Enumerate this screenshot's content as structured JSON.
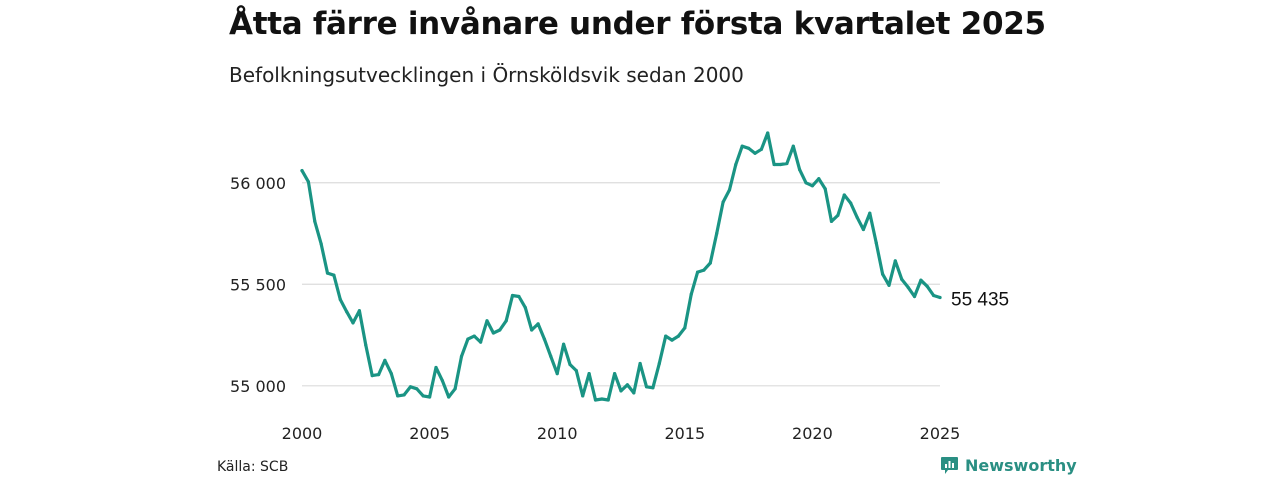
{
  "title": "Åtta färre invånare under första kvartalet 2025",
  "subtitle": "Befolkningsutvecklingen i Örnsköldsvik sedan 2000",
  "source": "Källa: SCB",
  "brand": {
    "name": "Newsworthy",
    "color": "#2a8f83"
  },
  "chart_data": {
    "type": "line",
    "series_color": "#1a9484",
    "grid": true,
    "ylim": [
      54930,
      56260
    ],
    "xlim": [
      2000,
      2025
    ],
    "y_ticks": [
      55000,
      55500,
      56000
    ],
    "y_tick_labels": [
      "55 000",
      "55 500",
      "56 000"
    ],
    "x_ticks": [
      2000,
      2005,
      2010,
      2015,
      2020,
      2025
    ],
    "x_tick_labels": [
      "2000",
      "2005",
      "2010",
      "2015",
      "2020",
      "2025"
    ],
    "end_label": "55 435",
    "x": [
      2000.0,
      2000.25,
      2000.5,
      2000.75,
      2001.0,
      2001.25,
      2001.5,
      2001.75,
      2002.0,
      2002.25,
      2002.5,
      2002.75,
      2003.0,
      2003.25,
      2003.5,
      2003.75,
      2004.0,
      2004.25,
      2004.5,
      2004.75,
      2005.0,
      2005.25,
      2005.5,
      2005.75,
      2006.0,
      2006.25,
      2006.5,
      2006.75,
      2007.0,
      2007.25,
      2007.5,
      2007.75,
      2008.0,
      2008.25,
      2008.5,
      2008.75,
      2009.0,
      2009.25,
      2009.5,
      2009.75,
      2010.0,
      2010.25,
      2010.5,
      2010.75,
      2011.0,
      2011.25,
      2011.5,
      2011.75,
      2012.0,
      2012.25,
      2012.5,
      2012.75,
      2013.0,
      2013.25,
      2013.5,
      2013.75,
      2014.0,
      2014.25,
      2014.5,
      2014.75,
      2015.0,
      2015.25,
      2015.5,
      2015.75,
      2016.0,
      2016.25,
      2016.5,
      2016.75,
      2017.0,
      2017.25,
      2017.5,
      2017.75,
      2018.0,
      2018.25,
      2018.5,
      2018.75,
      2019.0,
      2019.25,
      2019.5,
      2019.75,
      2020.0,
      2020.25,
      2020.5,
      2020.75,
      2021.0,
      2021.25,
      2021.5,
      2021.75,
      2022.0,
      2022.25,
      2022.5,
      2022.75,
      2023.0,
      2023.25,
      2023.5,
      2023.75,
      2024.0,
      2024.25,
      2024.5,
      2024.75,
      2025.0
    ],
    "values": [
      56060,
      56005,
      55810,
      55700,
      55555,
      55545,
      55425,
      55365,
      55310,
      55370,
      55200,
      55050,
      55055,
      55125,
      55060,
      54950,
      54955,
      54995,
      54985,
      54950,
      54945,
      55090,
      55025,
      54945,
      54985,
      55145,
      55230,
      55245,
      55215,
      55320,
      55260,
      55275,
      55320,
      55445,
      55440,
      55385,
      55275,
      55305,
      55230,
      55145,
      55060,
      55205,
      55105,
      55075,
      54950,
      55060,
      54930,
      54935,
      54930,
      55060,
      54975,
      55005,
      54965,
      55110,
      54995,
      54990,
      55110,
      55245,
      55225,
      55245,
      55285,
      55450,
      55560,
      55570,
      55605,
      55750,
      55905,
      55965,
      56090,
      56180,
      56170,
      56145,
      56165,
      56245,
      56090,
      56090,
      56095,
      56180,
      56065,
      56000,
      55985,
      56020,
      55970,
      55810,
      55840,
      55940,
      55900,
      55830,
      55770,
      55850,
      55705,
      55550,
      55495,
      55615,
      55525,
      55485,
      55440,
      55520,
      55490,
      55445,
      55435
    ]
  }
}
